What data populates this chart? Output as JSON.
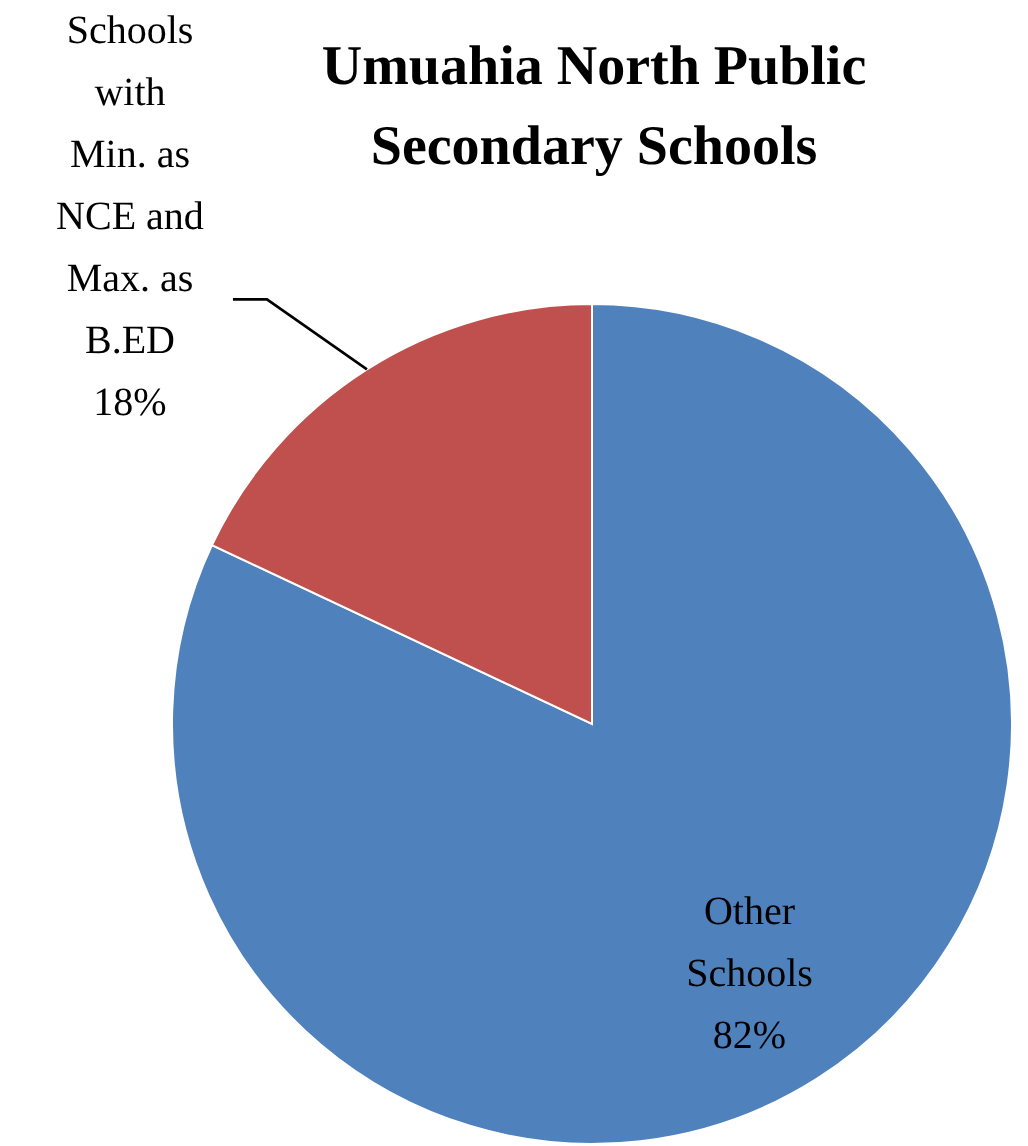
{
  "chart_data": {
    "type": "pie",
    "title": "Umuahia North Public Secondary Schools",
    "categories": [
      "Other Schools",
      "Schools with Min. as NCE and Max. as B.ED"
    ],
    "values": [
      82,
      18
    ],
    "colors": [
      "#4f81bd",
      "#c0504d"
    ],
    "value_labels": [
      "82%",
      "18%"
    ]
  }
}
